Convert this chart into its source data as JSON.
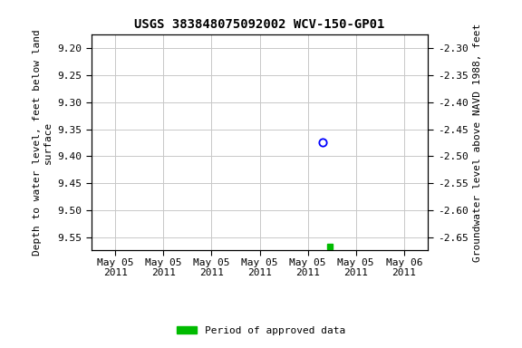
{
  "title": "USGS 383848075092002 WCV-150-GP01",
  "ylabel_left": "Depth to water level, feet below land\nsurface",
  "ylabel_right": "Groundwater level above NAVD 1988, feet",
  "ylim_left": [
    9.575,
    9.175
  ],
  "ylim_right": [
    -2.675,
    -2.275
  ],
  "yticks_left": [
    9.2,
    9.25,
    9.3,
    9.35,
    9.4,
    9.45,
    9.5,
    9.55
  ],
  "yticks_right": [
    -2.3,
    -2.35,
    -2.4,
    -2.45,
    -2.5,
    -2.55,
    -2.6,
    -2.65
  ],
  "xlim": [
    -0.5,
    6.5
  ],
  "xtick_labels": [
    "May 05\n2011",
    "May 05\n2011",
    "May 05\n2011",
    "May 05\n2011",
    "May 05\n2011",
    "May 05\n2011",
    "May 06\n2011"
  ],
  "xtick_positions": [
    0,
    1,
    2,
    3,
    4,
    5,
    6
  ],
  "point_blue_x": 4.3,
  "point_blue_y": 9.375,
  "point_green_x": 4.45,
  "point_green_y": 9.568,
  "background_color": "#ffffff",
  "grid_color": "#c8c8c8",
  "title_fontsize": 10,
  "axis_label_fontsize": 8,
  "tick_fontsize": 8,
  "legend_label": "Period of approved data",
  "legend_color": "#00bb00"
}
